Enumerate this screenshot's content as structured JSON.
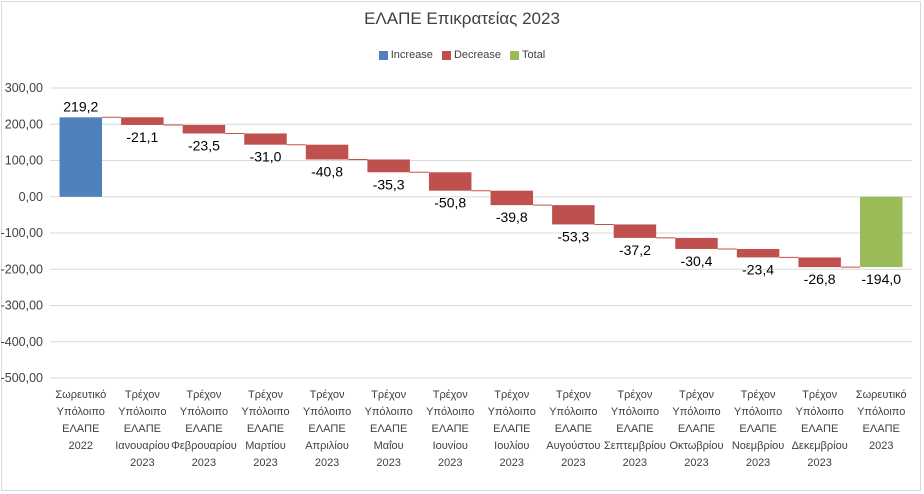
{
  "chart_data": {
    "type": "waterfall",
    "title": "ΕΛΑΠΕ Επικρατείας 2023",
    "legend": [
      {
        "label": "Increase",
        "color": "#4f81bd"
      },
      {
        "label": "Decrease",
        "color": "#c0504d"
      },
      {
        "label": "Total",
        "color": "#9bbb59"
      }
    ],
    "legend_position": "top",
    "ylim": [
      -500,
      300
    ],
    "yticks": [
      "300,00",
      "200,00",
      "100,00",
      "0,00",
      "-100,00",
      "-200,00",
      "-300,00",
      "-400,00",
      "-500,00"
    ],
    "grid": true,
    "categories": [
      [
        "Σωρευτικό",
        "Υπόλοιπο",
        "ΕΛΑΠΕ",
        "2022"
      ],
      [
        "Τρέχον",
        "Υπόλοιπο",
        "ΕΛΑΠΕ",
        "Ιανουαρίου",
        "2023"
      ],
      [
        "Τρέχον",
        "Υπόλοιπο",
        "ΕΛΑΠΕ",
        "Φεβρουαρίου",
        "2023"
      ],
      [
        "Τρέχον",
        "Υπόλοιπο",
        "ΕΛΑΠΕ",
        "Μαρτίου",
        "2023"
      ],
      [
        "Τρέχον",
        "Υπόλοιπο",
        "ΕΛΑΠΕ",
        "Απριλίου",
        "2023"
      ],
      [
        "Τρέχον",
        "Υπόλοιπο",
        "ΕΛΑΠΕ",
        "Μαΐου",
        "2023"
      ],
      [
        "Τρέχον",
        "Υπόλοιπο",
        "ΕΛΑΠΕ",
        "Ιουνίου",
        "2023"
      ],
      [
        "Τρέχον",
        "Υπόλοιπο",
        "ΕΛΑΠΕ",
        "Ιουλίου",
        "2023"
      ],
      [
        "Τρέχον",
        "Υπόλοιπο",
        "ΕΛΑΠΕ",
        "Αυγούστου",
        "2023"
      ],
      [
        "Τρέχον",
        "Υπόλοιπο",
        "ΕΛΑΠΕ",
        "Σεπτεμβρίου",
        "2023"
      ],
      [
        "Τρέχον",
        "Υπόλοιπο",
        "ΕΛΑΠΕ",
        "Οκτωβρίου",
        "2023"
      ],
      [
        "Τρέχον",
        "Υπόλοιπο",
        "ΕΛΑΠΕ",
        "Νοεμβρίου",
        "2023"
      ],
      [
        "Τρέχον",
        "Υπόλοιπο",
        "ΕΛΑΠΕ",
        "Δεκεμβρίου",
        "2023"
      ],
      [
        "Σωρευτικό",
        "Υπόλοιπο",
        "ΕΛΑΠΕ",
        "2023"
      ]
    ],
    "values": [
      219.2,
      -21.1,
      -23.5,
      -31.0,
      -40.8,
      -35.3,
      -50.8,
      -39.8,
      -53.3,
      -37.2,
      -30.4,
      -23.4,
      -26.8,
      -194.0
    ],
    "value_labels": [
      "219,2",
      "-21,1",
      "-23,5",
      "-31,0",
      "-40,8",
      "-35,3",
      "-50,8",
      "-39,8",
      "-53,3",
      "-37,2",
      "-30,4",
      "-23,4",
      "-26,8",
      "-194,0"
    ],
    "kinds": [
      "increase",
      "decrease",
      "decrease",
      "decrease",
      "decrease",
      "decrease",
      "decrease",
      "decrease",
      "decrease",
      "decrease",
      "decrease",
      "decrease",
      "decrease",
      "total"
    ]
  }
}
